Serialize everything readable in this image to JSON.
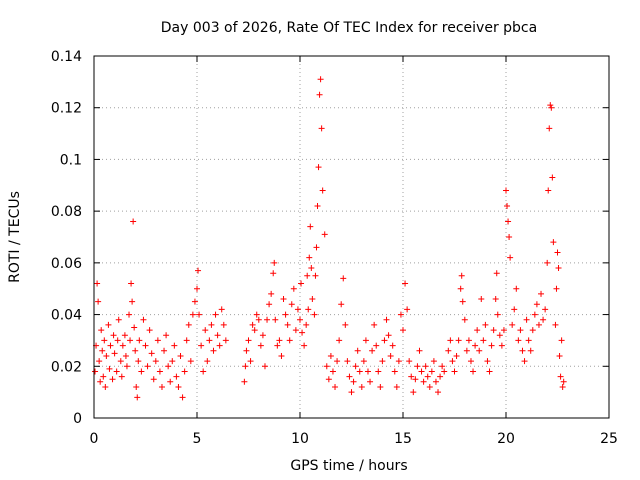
{
  "chart_data": {
    "type": "scatter",
    "title": "Day 003 of 2026, Rate Of TEC Index for receiver pbca",
    "xlabel": "GPS time / hours",
    "ylabel": "ROTI / TECUs",
    "xlim": [
      0,
      25
    ],
    "ylim": [
      0,
      0.14
    ],
    "x_ticks": [
      0,
      5,
      10,
      15,
      20,
      25
    ],
    "x_tick_labels": [
      "0",
      "5",
      "10",
      "15",
      "20",
      "25"
    ],
    "y_ticks": [
      0,
      0.02,
      0.04,
      0.06,
      0.08,
      0.1,
      0.12,
      0.14
    ],
    "y_tick_labels": [
      "0",
      "0.02",
      "0.04",
      "0.06",
      "0.08",
      "0.1",
      "0.12",
      "0.14"
    ],
    "grid": true,
    "marker": "+",
    "colors": {
      "points": "#ff0000",
      "grid": "#a0a0a0",
      "axes": "#000000"
    },
    "series": [
      {
        "name": "ROTI",
        "points": [
          [
            0.05,
            0.018
          ],
          [
            0.1,
            0.028
          ],
          [
            0.15,
            0.052
          ],
          [
            0.2,
            0.045
          ],
          [
            0.25,
            0.022
          ],
          [
            0.3,
            0.014
          ],
          [
            0.35,
            0.034
          ],
          [
            0.4,
            0.026
          ],
          [
            0.45,
            0.016
          ],
          [
            0.5,
            0.03
          ],
          [
            0.55,
            0.012
          ],
          [
            0.6,
            0.024
          ],
          [
            0.7,
            0.036
          ],
          [
            0.75,
            0.019
          ],
          [
            0.8,
            0.028
          ],
          [
            0.9,
            0.015
          ],
          [
            0.95,
            0.032
          ],
          [
            1.0,
            0.025
          ],
          [
            1.1,
            0.018
          ],
          [
            1.15,
            0.03
          ],
          [
            1.2,
            0.038
          ],
          [
            1.3,
            0.022
          ],
          [
            1.35,
            0.016
          ],
          [
            1.4,
            0.028
          ],
          [
            1.5,
            0.032
          ],
          [
            1.55,
            0.024
          ],
          [
            1.6,
            0.02
          ],
          [
            1.7,
            0.04
          ],
          [
            1.75,
            0.03
          ],
          [
            1.8,
            0.052
          ],
          [
            1.85,
            0.045
          ],
          [
            1.9,
            0.076
          ],
          [
            1.95,
            0.035
          ],
          [
            2.0,
            0.026
          ],
          [
            2.05,
            0.012
          ],
          [
            2.1,
            0.008
          ],
          [
            2.15,
            0.022
          ],
          [
            2.2,
            0.03
          ],
          [
            2.3,
            0.018
          ],
          [
            2.4,
            0.038
          ],
          [
            2.5,
            0.028
          ],
          [
            2.6,
            0.02
          ],
          [
            2.7,
            0.034
          ],
          [
            2.8,
            0.025
          ],
          [
            2.9,
            0.015
          ],
          [
            3.0,
            0.022
          ],
          [
            3.1,
            0.03
          ],
          [
            3.2,
            0.018
          ],
          [
            3.3,
            0.012
          ],
          [
            3.4,
            0.026
          ],
          [
            3.5,
            0.032
          ],
          [
            3.6,
            0.02
          ],
          [
            3.7,
            0.014
          ],
          [
            3.8,
            0.022
          ],
          [
            3.9,
            0.028
          ],
          [
            4.0,
            0.016
          ],
          [
            4.1,
            0.012
          ],
          [
            4.2,
            0.024
          ],
          [
            4.3,
            0.008
          ],
          [
            4.4,
            0.018
          ],
          [
            4.5,
            0.03
          ],
          [
            4.6,
            0.036
          ],
          [
            4.7,
            0.022
          ],
          [
            4.8,
            0.04
          ],
          [
            4.9,
            0.045
          ],
          [
            5.0,
            0.05
          ],
          [
            5.05,
            0.057
          ],
          [
            5.1,
            0.04
          ],
          [
            5.2,
            0.028
          ],
          [
            5.3,
            0.018
          ],
          [
            5.4,
            0.034
          ],
          [
            5.5,
            0.022
          ],
          [
            5.6,
            0.03
          ],
          [
            5.7,
            0.036
          ],
          [
            5.8,
            0.026
          ],
          [
            5.9,
            0.04
          ],
          [
            6.0,
            0.032
          ],
          [
            6.1,
            0.028
          ],
          [
            6.2,
            0.042
          ],
          [
            6.3,
            0.036
          ],
          [
            6.4,
            0.03
          ],
          [
            7.3,
            0.014
          ],
          [
            7.35,
            0.02
          ],
          [
            7.4,
            0.026
          ],
          [
            7.5,
            0.03
          ],
          [
            7.6,
            0.022
          ],
          [
            7.7,
            0.036
          ],
          [
            7.8,
            0.034
          ],
          [
            7.9,
            0.04
          ],
          [
            8.0,
            0.038
          ],
          [
            8.1,
            0.028
          ],
          [
            8.2,
            0.032
          ],
          [
            8.3,
            0.02
          ],
          [
            8.4,
            0.038
          ],
          [
            8.5,
            0.044
          ],
          [
            8.6,
            0.048
          ],
          [
            8.7,
            0.056
          ],
          [
            8.75,
            0.06
          ],
          [
            8.8,
            0.038
          ],
          [
            8.9,
            0.028
          ],
          [
            9.0,
            0.03
          ],
          [
            9.1,
            0.024
          ],
          [
            9.2,
            0.046
          ],
          [
            9.3,
            0.04
          ],
          [
            9.4,
            0.036
          ],
          [
            9.5,
            0.03
          ],
          [
            9.6,
            0.044
          ],
          [
            9.7,
            0.05
          ],
          [
            9.8,
            0.034
          ],
          [
            9.9,
            0.042
          ],
          [
            10.0,
            0.038
          ],
          [
            10.05,
            0.052
          ],
          [
            10.1,
            0.033
          ],
          [
            10.2,
            0.028
          ],
          [
            10.3,
            0.036
          ],
          [
            10.35,
            0.055
          ],
          [
            10.4,
            0.042
          ],
          [
            10.45,
            0.062
          ],
          [
            10.5,
            0.074
          ],
          [
            10.55,
            0.058
          ],
          [
            10.6,
            0.046
          ],
          [
            10.7,
            0.04
          ],
          [
            10.75,
            0.055
          ],
          [
            10.8,
            0.066
          ],
          [
            10.85,
            0.082
          ],
          [
            10.9,
            0.097
          ],
          [
            10.95,
            0.125
          ],
          [
            11.0,
            0.131
          ],
          [
            11.05,
            0.112
          ],
          [
            11.1,
            0.088
          ],
          [
            11.2,
            0.071
          ],
          [
            11.3,
            0.02
          ],
          [
            11.4,
            0.015
          ],
          [
            11.5,
            0.024
          ],
          [
            11.6,
            0.018
          ],
          [
            11.7,
            0.012
          ],
          [
            11.8,
            0.022
          ],
          [
            11.9,
            0.03
          ],
          [
            12.0,
            0.044
          ],
          [
            12.1,
            0.054
          ],
          [
            12.2,
            0.036
          ],
          [
            12.3,
            0.022
          ],
          [
            12.4,
            0.016
          ],
          [
            12.5,
            0.01
          ],
          [
            12.6,
            0.014
          ],
          [
            12.7,
            0.02
          ],
          [
            12.8,
            0.026
          ],
          [
            12.9,
            0.018
          ],
          [
            13.0,
            0.012
          ],
          [
            13.1,
            0.022
          ],
          [
            13.2,
            0.03
          ],
          [
            13.3,
            0.018
          ],
          [
            13.4,
            0.014
          ],
          [
            13.5,
            0.026
          ],
          [
            13.6,
            0.036
          ],
          [
            13.7,
            0.028
          ],
          [
            13.8,
            0.018
          ],
          [
            13.9,
            0.012
          ],
          [
            14.0,
            0.022
          ],
          [
            14.1,
            0.03
          ],
          [
            14.2,
            0.038
          ],
          [
            14.3,
            0.032
          ],
          [
            14.4,
            0.024
          ],
          [
            14.5,
            0.028
          ],
          [
            14.6,
            0.018
          ],
          [
            14.7,
            0.012
          ],
          [
            14.8,
            0.022
          ],
          [
            14.9,
            0.04
          ],
          [
            15.0,
            0.034
          ],
          [
            15.1,
            0.052
          ],
          [
            15.2,
            0.042
          ],
          [
            15.3,
            0.022
          ],
          [
            15.4,
            0.016
          ],
          [
            15.5,
            0.01
          ],
          [
            15.6,
            0.015
          ],
          [
            15.7,
            0.02
          ],
          [
            15.8,
            0.026
          ],
          [
            15.9,
            0.018
          ],
          [
            16.0,
            0.014
          ],
          [
            16.1,
            0.02
          ],
          [
            16.2,
            0.016
          ],
          [
            16.3,
            0.012
          ],
          [
            16.4,
            0.018
          ],
          [
            16.5,
            0.022
          ],
          [
            16.6,
            0.014
          ],
          [
            16.7,
            0.01
          ],
          [
            16.8,
            0.016
          ],
          [
            16.9,
            0.02
          ],
          [
            17.0,
            0.018
          ],
          [
            17.2,
            0.026
          ],
          [
            17.3,
            0.03
          ],
          [
            17.4,
            0.022
          ],
          [
            17.5,
            0.018
          ],
          [
            17.6,
            0.024
          ],
          [
            17.7,
            0.03
          ],
          [
            17.8,
            0.05
          ],
          [
            17.85,
            0.055
          ],
          [
            17.9,
            0.045
          ],
          [
            18.0,
            0.038
          ],
          [
            18.1,
            0.026
          ],
          [
            18.2,
            0.03
          ],
          [
            18.3,
            0.022
          ],
          [
            18.4,
            0.018
          ],
          [
            18.5,
            0.028
          ],
          [
            18.6,
            0.034
          ],
          [
            18.7,
            0.026
          ],
          [
            18.8,
            0.046
          ],
          [
            18.9,
            0.03
          ],
          [
            19.0,
            0.036
          ],
          [
            19.1,
            0.022
          ],
          [
            19.2,
            0.018
          ],
          [
            19.3,
            0.028
          ],
          [
            19.4,
            0.034
          ],
          [
            19.5,
            0.046
          ],
          [
            19.55,
            0.056
          ],
          [
            19.6,
            0.04
          ],
          [
            19.7,
            0.032
          ],
          [
            19.8,
            0.028
          ],
          [
            19.9,
            0.034
          ],
          [
            20.0,
            0.088
          ],
          [
            20.05,
            0.082
          ],
          [
            20.1,
            0.076
          ],
          [
            20.15,
            0.07
          ],
          [
            20.2,
            0.062
          ],
          [
            20.3,
            0.036
          ],
          [
            20.4,
            0.042
          ],
          [
            20.5,
            0.05
          ],
          [
            20.6,
            0.03
          ],
          [
            20.7,
            0.034
          ],
          [
            20.8,
            0.026
          ],
          [
            20.9,
            0.022
          ],
          [
            21.0,
            0.038
          ],
          [
            21.1,
            0.03
          ],
          [
            21.2,
            0.026
          ],
          [
            21.3,
            0.034
          ],
          [
            21.4,
            0.04
          ],
          [
            21.5,
            0.044
          ],
          [
            21.6,
            0.036
          ],
          [
            21.7,
            0.048
          ],
          [
            21.8,
            0.038
          ],
          [
            21.9,
            0.042
          ],
          [
            22.0,
            0.06
          ],
          [
            22.05,
            0.088
          ],
          [
            22.1,
            0.112
          ],
          [
            22.15,
            0.121
          ],
          [
            22.2,
            0.12
          ],
          [
            22.25,
            0.093
          ],
          [
            22.3,
            0.068
          ],
          [
            22.4,
            0.036
          ],
          [
            22.45,
            0.05
          ],
          [
            22.5,
            0.064
          ],
          [
            22.55,
            0.058
          ],
          [
            22.6,
            0.024
          ],
          [
            22.65,
            0.016
          ],
          [
            22.7,
            0.03
          ],
          [
            22.75,
            0.012
          ],
          [
            22.8,
            0.014
          ]
        ]
      }
    ]
  }
}
